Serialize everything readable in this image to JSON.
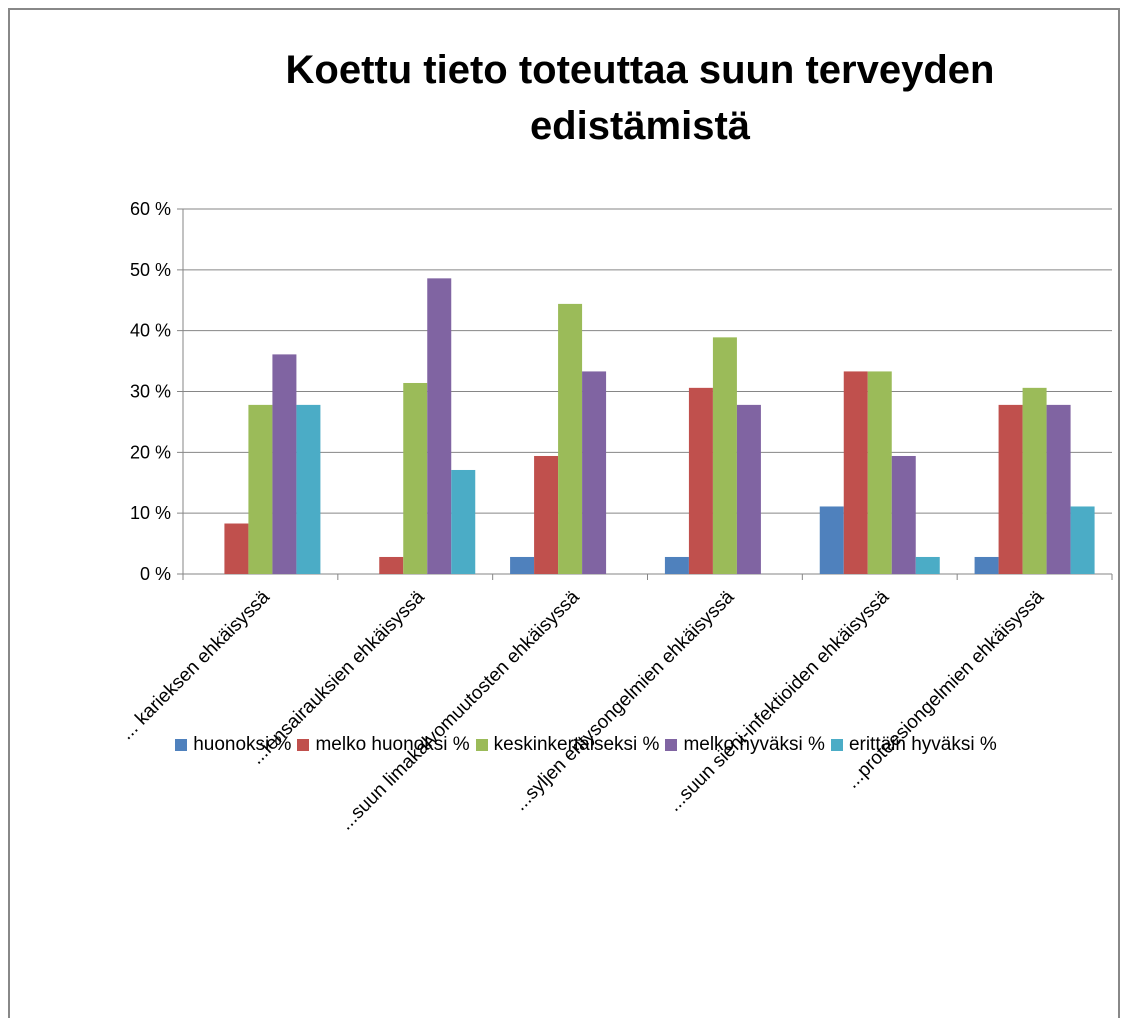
{
  "chart_data": {
    "type": "bar",
    "title": "Koettu tieto toteuttaa suun terveyden edistämistä",
    "categories": [
      "... karieksen ehkäisyssä",
      "...iensairauksien ehkäisyssä",
      "...suun limakalvomuutosten ehkäisyssä",
      "...syljen eritysongelmien ehkäisyssä",
      "...suun sieni-infektioiden ehkäisyssä",
      "...proteesiongelmien ehkäisyssä"
    ],
    "series": [
      {
        "name": "huonoksi %",
        "color": "#4f81bd",
        "values": [
          0,
          0,
          2.8,
          2.8,
          11.1,
          2.8
        ]
      },
      {
        "name": "melko huonoksi %",
        "color": "#c0504d",
        "values": [
          8.3,
          2.8,
          19.4,
          30.6,
          33.3,
          27.8
        ]
      },
      {
        "name": "keskinkertaiseksi %",
        "color": "#9bbb59",
        "values": [
          27.8,
          31.4,
          44.4,
          38.9,
          33.3,
          30.6
        ]
      },
      {
        "name": "melko hyväksi %",
        "color": "#8064a2",
        "values": [
          36.1,
          48.6,
          33.3,
          27.8,
          19.4,
          27.8
        ]
      },
      {
        "name": "erittäin hyväksi %",
        "color": "#4bacc6",
        "values": [
          27.8,
          17.1,
          0,
          0,
          2.8,
          11.1
        ]
      }
    ],
    "ylim": [
      0,
      60
    ],
    "yticks": [
      {
        "value": 0,
        "label": "0 %"
      },
      {
        "value": 10,
        "label": "10 %"
      },
      {
        "value": 20,
        "label": "20 %"
      },
      {
        "value": 30,
        "label": "30 %"
      },
      {
        "value": 40,
        "label": "40 %"
      },
      {
        "value": 50,
        "label": "50 %"
      },
      {
        "value": 60,
        "label": "60 %"
      }
    ],
    "grid": true,
    "legend": "bottom"
  }
}
